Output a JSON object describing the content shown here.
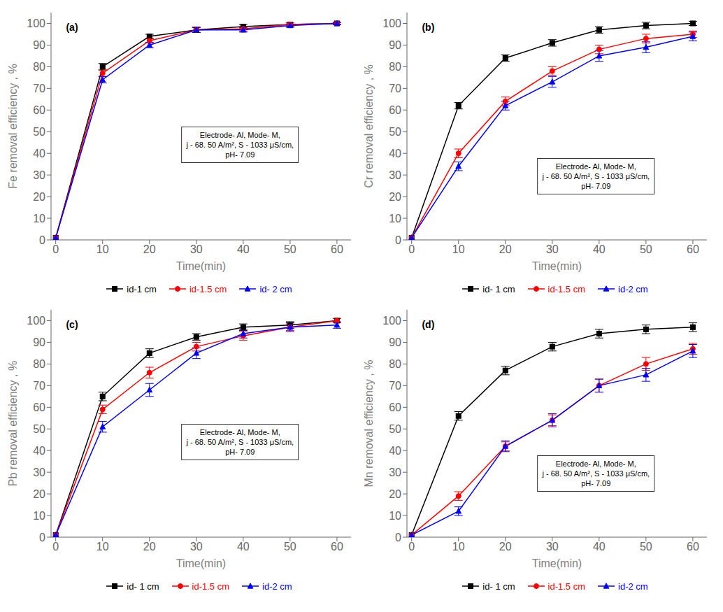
{
  "chart_data": [
    {
      "type": "line",
      "annotations": [
        "(a)",
        "Electrode- Al, Mode- M,\nj - 68. 50 A/m², S - 1033 μS/cm,\npH- 7.09"
      ],
      "x_label": "Time(min)",
      "y_label": "Fe removal efficiency , %",
      "x": [
        0,
        10,
        20,
        30,
        40,
        50,
        60
      ],
      "xlim": [
        -1,
        63
      ],
      "xticks": [
        0,
        10,
        20,
        30,
        40,
        50,
        60
      ],
      "ylim": [
        0,
        105
      ],
      "yticks": [
        0,
        10,
        20,
        30,
        40,
        50,
        60,
        70,
        80,
        90,
        100
      ],
      "grid": false,
      "legend": "bottom",
      "series": [
        {
          "name": "id-1 cm",
          "color": "black",
          "marker": "square",
          "values": [
            1,
            80,
            94,
            97,
            98.5,
            99.5,
            100
          ],
          "errors": [
            0,
            1.5,
            1.0,
            1.2,
            1.0,
            0.8,
            0.5
          ]
        },
        {
          "name": "id-1.5 cm",
          "color": "red",
          "marker": "circle",
          "values": [
            1,
            77,
            92,
            97,
            97.5,
            99.5,
            100
          ],
          "errors": [
            0,
            1.5,
            1.0,
            1.2,
            1.0,
            0.8,
            0.5
          ]
        },
        {
          "name": "id- 2 cm",
          "color": "blue",
          "marker": "triangle",
          "values": [
            1,
            74,
            90,
            97,
            97,
            99,
            100
          ],
          "errors": [
            0,
            1.5,
            1.2,
            1.2,
            1.0,
            0.8,
            0.5
          ]
        }
      ]
    },
    {
      "type": "line",
      "annotations": [
        "(b)",
        "Electrode- Al, Mode- M,\nj - 68. 50 A/m², S - 1033 μS/cm,\npH- 7.09"
      ],
      "x_label": "Time(min)",
      "y_label": "Cr removal efficiency , %",
      "x": [
        0,
        10,
        20,
        30,
        40,
        50,
        60
      ],
      "xlim": [
        -1,
        63
      ],
      "xticks": [
        0,
        10,
        20,
        30,
        40,
        50,
        60
      ],
      "ylim": [
        0,
        105
      ],
      "yticks": [
        0,
        10,
        20,
        30,
        40,
        50,
        60,
        70,
        80,
        90,
        100
      ],
      "grid": false,
      "legend": "bottom",
      "series": [
        {
          "name": "id- 1 cm",
          "color": "black",
          "marker": "square",
          "values": [
            1,
            62,
            84,
            91,
            97,
            99,
            100
          ],
          "errors": [
            0,
            1.5,
            1.5,
            1.5,
            1.5,
            1.5,
            1.0
          ]
        },
        {
          "name": "id-1.5 cm",
          "color": "red",
          "marker": "circle",
          "values": [
            1,
            40,
            64,
            78,
            88,
            93,
            95
          ],
          "errors": [
            0,
            2.0,
            2.0,
            2.0,
            2.0,
            2.0,
            1.5
          ]
        },
        {
          "name": "id-2 cm",
          "color": "blue",
          "marker": "triangle",
          "values": [
            1,
            34,
            62,
            73,
            85,
            89,
            94
          ],
          "errors": [
            0,
            2.0,
            2.0,
            2.5,
            2.5,
            2.5,
            2.0
          ]
        }
      ]
    },
    {
      "type": "line",
      "annotations": [
        "(c)",
        "Electrode- Al, Mode- M,\nj - 68. 50 A/m², S - 1033 μS/cm,\npH- 7.09"
      ],
      "x_label": "Time(min)",
      "y_label": "Pb removal efficiency , %",
      "x": [
        0,
        10,
        20,
        30,
        40,
        50,
        60
      ],
      "xlim": [
        -1,
        63
      ],
      "xticks": [
        0,
        10,
        20,
        30,
        40,
        50,
        60
      ],
      "ylim": [
        0,
        105
      ],
      "yticks": [
        0,
        10,
        20,
        30,
        40,
        50,
        60,
        70,
        80,
        90,
        100
      ],
      "grid": false,
      "legend": "bottom",
      "series": [
        {
          "name": "id- 1 cm",
          "color": "black",
          "marker": "square",
          "values": [
            1,
            65,
            85,
            92.5,
            97,
            98,
            100
          ],
          "errors": [
            0,
            2.0,
            2.0,
            1.5,
            1.5,
            1.5,
            1.0
          ]
        },
        {
          "name": "id-1.5 cm",
          "color": "red",
          "marker": "circle",
          "values": [
            1,
            59,
            76,
            88,
            93,
            97,
            100
          ],
          "errors": [
            0,
            2.0,
            2.5,
            2.0,
            2.0,
            1.5,
            1.0
          ]
        },
        {
          "name": "id-2 cm",
          "color": "blue",
          "marker": "triangle",
          "values": [
            1,
            51,
            68,
            85,
            94,
            97,
            98
          ],
          "errors": [
            0,
            2.5,
            3.0,
            2.5,
            2.0,
            2.0,
            1.5
          ]
        }
      ]
    },
    {
      "type": "line",
      "annotations": [
        "(d)",
        "Electrode- Al, Mode- M,\nj - 68. 50 A/m², S - 1033 μS/cm,\npH- 7.09"
      ],
      "x_label": "Time(min)",
      "y_label": "Mn removal efficiency , %",
      "x": [
        0,
        10,
        20,
        30,
        40,
        50,
        60
      ],
      "xlim": [
        -1,
        63
      ],
      "xticks": [
        0,
        10,
        20,
        30,
        40,
        50,
        60
      ],
      "ylim": [
        0,
        105
      ],
      "yticks": [
        0,
        10,
        20,
        30,
        40,
        50,
        60,
        70,
        80,
        90,
        100
      ],
      "grid": false,
      "legend": "bottom",
      "series": [
        {
          "name": "id- 1 cm",
          "color": "black",
          "marker": "square",
          "values": [
            1,
            56,
            77,
            88,
            94,
            96,
            97
          ],
          "errors": [
            0,
            2.0,
            2.0,
            2.0,
            2.0,
            2.0,
            2.0
          ]
        },
        {
          "name": "id-1.5 cm",
          "color": "red",
          "marker": "circle",
          "values": [
            1,
            19,
            42,
            54,
            70,
            80,
            87
          ],
          "errors": [
            0,
            2.0,
            2.0,
            2.5,
            3.0,
            3.0,
            2.5
          ]
        },
        {
          "name": "id-2 cm",
          "color": "blue",
          "marker": "triangle",
          "values": [
            1,
            12,
            42,
            54,
            70,
            75,
            86
          ],
          "errors": [
            0,
            2.0,
            2.5,
            3.0,
            3.0,
            3.0,
            3.0
          ]
        }
      ]
    }
  ]
}
